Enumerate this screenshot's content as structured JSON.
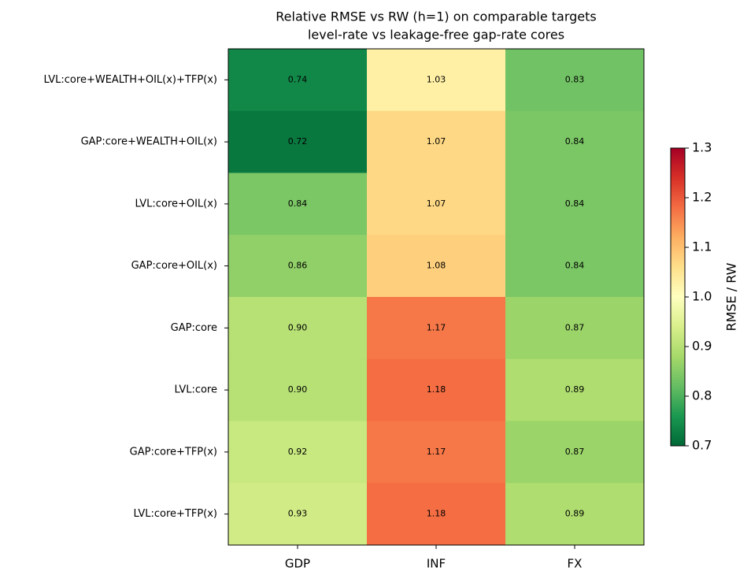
{
  "chart_data": {
    "type": "heatmap",
    "title": "Relative RMSE vs RW (h=1) on comparable targets",
    "subtitle": "level-rate vs leakage-free gap-rate cores",
    "columns": [
      "GDP",
      "INF",
      "FX"
    ],
    "rows": [
      "LVL:core+WEALTH+OIL(x)+TFP(x)",
      "GAP:core+WEALTH+OIL(x)",
      "LVL:core+OIL(x)",
      "GAP:core+OIL(x)",
      "GAP:core",
      "LVL:core",
      "GAP:core+TFP(x)",
      "LVL:core+TFP(x)"
    ],
    "values": [
      [
        0.74,
        1.03,
        0.83
      ],
      [
        0.72,
        1.07,
        0.84
      ],
      [
        0.84,
        1.07,
        0.84
      ],
      [
        0.86,
        1.08,
        0.84
      ],
      [
        0.9,
        1.17,
        0.87
      ],
      [
        0.9,
        1.18,
        0.89
      ],
      [
        0.92,
        1.17,
        0.87
      ],
      [
        0.93,
        1.18,
        0.89
      ]
    ],
    "value_labels": [
      [
        "0.74",
        "1.03",
        "0.83"
      ],
      [
        "0.72",
        "1.07",
        "0.84"
      ],
      [
        "0.84",
        "1.07",
        "0.84"
      ],
      [
        "0.86",
        "1.08",
        "0.84"
      ],
      [
        "0.90",
        "1.17",
        "0.87"
      ],
      [
        "0.90",
        "1.18",
        "0.89"
      ],
      [
        "0.92",
        "1.17",
        "0.87"
      ],
      [
        "0.93",
        "1.18",
        "0.89"
      ]
    ],
    "colormap": "RdYlGn_r",
    "clim": [
      0.7,
      1.3
    ],
    "cticks": [
      0.7,
      0.8,
      0.9,
      {
        "value": 1,
        "label": "1.0"
      },
      1.1,
      1.2,
      1.3
    ],
    "colorbar_label": "RMSE / RW"
  }
}
